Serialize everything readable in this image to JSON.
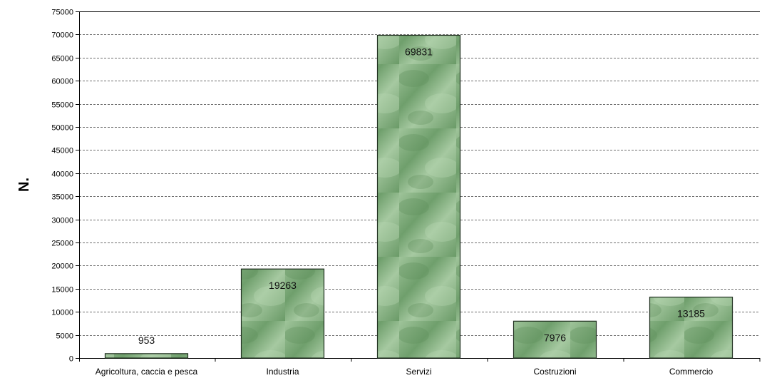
{
  "chart_data": {
    "type": "bar",
    "title": "",
    "xlabel": "",
    "ylabel": "N.",
    "ylim": [
      0,
      75000
    ],
    "ytick_step": 5000,
    "grid": true,
    "categories": [
      "Agricoltura, caccia e pesca",
      "Industria",
      "Servizi",
      "Costruzioni",
      "Commercio"
    ],
    "values": [
      953,
      19263,
      69831,
      7976,
      13185
    ],
    "data_labels": [
      "953",
      "19263",
      "69831",
      "7976",
      "13185"
    ],
    "colors": {
      "bar": "#7fae7c",
      "bar_dark": "#5a8f59",
      "bar_light": "#a9cba4",
      "grid": "#6e6e6e",
      "axis": "#000000"
    }
  }
}
